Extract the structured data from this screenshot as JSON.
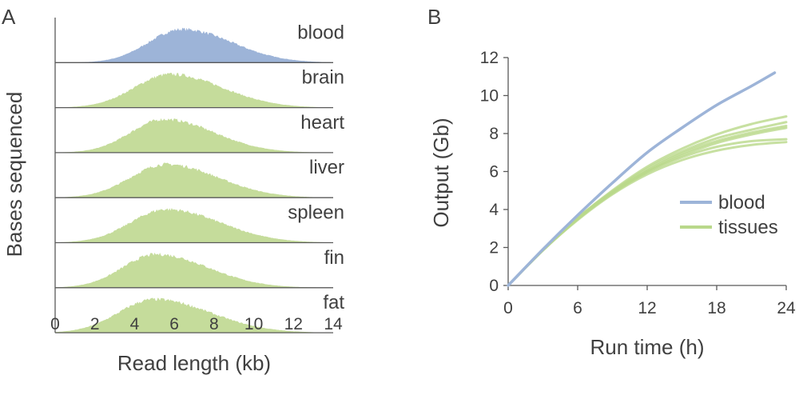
{
  "panels": {
    "a_label": "A",
    "b_label": "B"
  },
  "colors": {
    "blood": "#9db4d8",
    "tissue": "#c5dc9b",
    "blood_line": "#9db4d8",
    "tissue_line": "#b9d88a",
    "axis": "#595959",
    "text": "#404040"
  },
  "chart_data": [
    {
      "type": "area",
      "panel": "A",
      "xlabel": "Read length (kb)",
      "ylabel": "Bases sequenced",
      "xlim": [
        0,
        14
      ],
      "xticks": [
        0,
        2,
        4,
        6,
        8,
        10,
        12,
        14
      ],
      "series": [
        {
          "name": "blood",
          "mode": 6.4,
          "sd_left": 1.7,
          "sd_right": 2.5,
          "color": "#9db4d8"
        },
        {
          "name": "brain",
          "mode": 5.8,
          "sd_left": 1.8,
          "sd_right": 2.6,
          "color": "#c5dc9b"
        },
        {
          "name": "heart",
          "mode": 5.5,
          "sd_left": 1.7,
          "sd_right": 2.5,
          "color": "#c5dc9b"
        },
        {
          "name": "liver",
          "mode": 5.6,
          "sd_left": 1.8,
          "sd_right": 2.6,
          "color": "#c5dc9b"
        },
        {
          "name": "spleen",
          "mode": 5.6,
          "sd_left": 1.8,
          "sd_right": 2.7,
          "color": "#c5dc9b"
        },
        {
          "name": "fin",
          "mode": 5.1,
          "sd_left": 1.7,
          "sd_right": 2.6,
          "color": "#c5dc9b"
        },
        {
          "name": "fat",
          "mode": 5.0,
          "sd_left": 1.8,
          "sd_right": 2.8,
          "color": "#c5dc9b"
        }
      ]
    },
    {
      "type": "line",
      "panel": "B",
      "xlabel": "Run time (h)",
      "ylabel": "Output (Gb)",
      "xlim": [
        0,
        24
      ],
      "ylim": [
        0,
        12
      ],
      "xticks": [
        0,
        6,
        12,
        18,
        24
      ],
      "yticks": [
        0,
        2,
        4,
        6,
        8,
        10,
        12
      ],
      "legend": {
        "position": "right",
        "entries": [
          "blood",
          "tissues"
        ]
      },
      "series": [
        {
          "name": "blood",
          "group": "blood",
          "x": [
            0,
            3,
            6,
            9,
            12,
            15,
            18,
            21,
            23
          ],
          "y": [
            0,
            1.9,
            3.7,
            5.4,
            7.0,
            8.3,
            9.5,
            10.5,
            11.2
          ]
        },
        {
          "group": "tissues",
          "x": [
            0,
            3,
            6,
            9,
            12,
            15,
            18,
            21,
            24
          ],
          "y": [
            0,
            1.85,
            3.55,
            5.0,
            6.25,
            7.2,
            7.95,
            8.5,
            8.9
          ]
        },
        {
          "group": "tissues",
          "x": [
            0,
            3,
            6,
            9,
            12,
            15,
            18,
            21,
            24
          ],
          "y": [
            0,
            1.85,
            3.55,
            4.95,
            6.15,
            7.05,
            7.75,
            8.2,
            8.6
          ]
        },
        {
          "group": "tissues",
          "x": [
            0,
            3,
            6,
            9,
            12,
            15,
            18,
            21,
            24
          ],
          "y": [
            0,
            1.85,
            3.5,
            4.9,
            6.05,
            6.95,
            7.6,
            8.05,
            8.4
          ]
        },
        {
          "group": "tissues",
          "x": [
            0,
            3,
            6,
            9,
            12,
            15,
            18,
            21,
            24
          ],
          "y": [
            0,
            1.85,
            3.5,
            4.85,
            5.95,
            6.75,
            7.3,
            7.6,
            7.7
          ]
        },
        {
          "group": "tissues",
          "x": [
            0,
            3,
            6,
            9,
            12,
            15,
            18,
            21,
            24
          ],
          "y": [
            0,
            1.85,
            3.45,
            4.8,
            5.85,
            6.6,
            7.1,
            7.4,
            7.55
          ]
        },
        {
          "group": "tissues",
          "x": [
            0,
            3,
            6,
            9,
            12,
            15,
            18,
            21,
            24
          ],
          "y": [
            0,
            1.85,
            3.5,
            4.9,
            6.0,
            6.85,
            7.5,
            7.95,
            8.3
          ]
        }
      ]
    }
  ]
}
